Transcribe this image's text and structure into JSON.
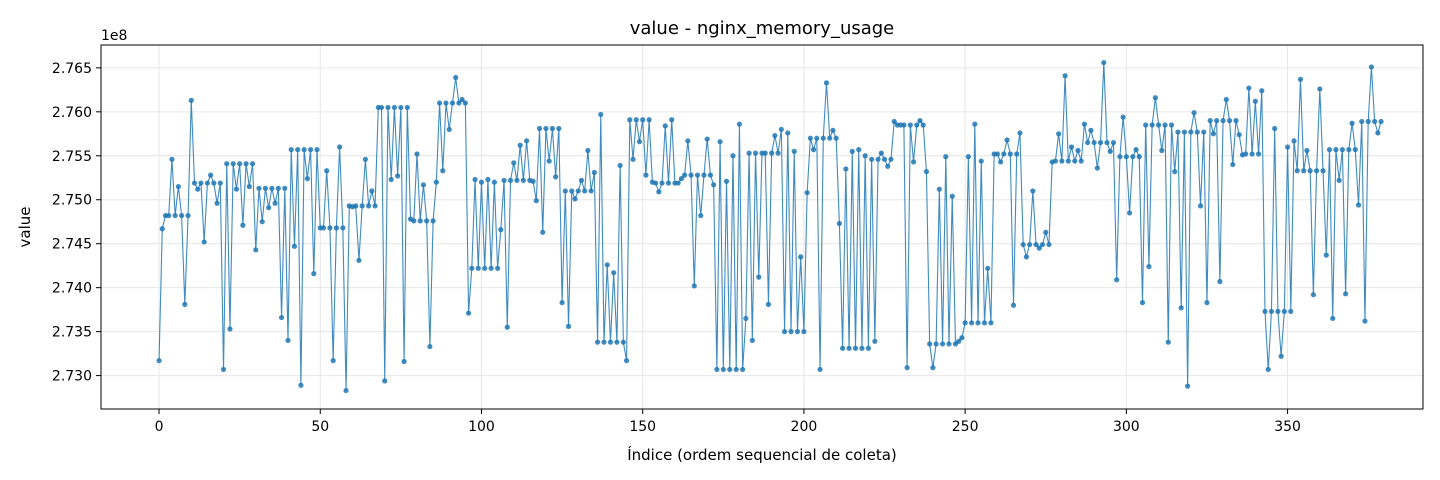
{
  "chart_data": {
    "type": "line",
    "title": "value - nginx_memory_usage",
    "xlabel": "Índice (ordem sequencial de coleta)",
    "ylabel": "value",
    "y_offset_label": "1e8",
    "xlim": [
      -18,
      392
    ],
    "ylim": [
      2.7262,
      2.7676
    ],
    "xticks": [
      0,
      50,
      100,
      150,
      200,
      250,
      300,
      350
    ],
    "yticks": [
      2.73,
      2.735,
      2.74,
      2.745,
      2.75,
      2.755,
      2.76,
      2.765
    ],
    "grid": true,
    "marker": "circle",
    "color": "#1f77b4",
    "series": [
      {
        "x_start": 0,
        "x_step": 1,
        "values": [
          2.7317,
          2.7467,
          2.7482,
          2.7482,
          2.7546,
          2.7482,
          2.7515,
          2.7482,
          2.7381,
          2.7482,
          2.7613,
          2.7519,
          2.7512,
          2.7519,
          2.7452,
          2.7519,
          2.7528,
          2.7519,
          2.7496,
          2.7519,
          2.7307,
          2.7541,
          2.7353,
          2.7541,
          2.7512,
          2.7541,
          2.7471,
          2.7541,
          2.7515,
          2.7541,
          2.7443,
          2.7513,
          2.7475,
          2.7513,
          2.7491,
          2.7513,
          2.7496,
          2.7513,
          2.7366,
          2.7513,
          2.734,
          2.7557,
          2.7447,
          2.7557,
          2.7289,
          2.7557,
          2.7524,
          2.7557,
          2.7416,
          2.7557,
          2.7468,
          2.7468,
          2.7533,
          2.7468,
          2.7317,
          2.7468,
          2.756,
          2.7468,
          2.7283,
          2.7493,
          2.7492,
          2.7493,
          2.7431,
          2.7493,
          2.7546,
          2.7493,
          2.751,
          2.7493,
          2.7605,
          2.7605,
          2.7294,
          2.7605,
          2.7523,
          2.7605,
          2.7527,
          2.7605,
          2.7316,
          2.7605,
          2.7478,
          2.7476,
          2.7552,
          2.7476,
          2.7517,
          2.7476,
          2.7333,
          2.7476,
          2.752,
          2.761,
          2.7533,
          2.761,
          2.758,
          2.761,
          2.7639,
          2.761,
          2.7614,
          2.761,
          2.7371,
          2.7422,
          2.7523,
          2.7422,
          2.752,
          2.7422,
          2.7523,
          2.7422,
          2.752,
          2.7422,
          2.7466,
          2.7522,
          2.7355,
          2.7522,
          2.7542,
          2.7522,
          2.7562,
          2.7522,
          2.7567,
          2.7522,
          2.7521,
          2.7499,
          2.7581,
          2.7463,
          2.7581,
          2.7544,
          2.7581,
          2.7526,
          2.7581,
          2.7383,
          2.751,
          2.7356,
          2.751,
          2.7501,
          2.751,
          2.7522,
          2.751,
          2.7556,
          2.751,
          2.7531,
          2.7338,
          2.7597,
          2.7338,
          2.7426,
          2.7338,
          2.7417,
          2.7338,
          2.7539,
          2.7338,
          2.7317,
          2.7591,
          2.7546,
          2.7591,
          2.7566,
          2.7591,
          2.7528,
          2.7591,
          2.752,
          2.7519,
          2.7509,
          2.7519,
          2.7584,
          2.7519,
          2.7591,
          2.7519,
          2.7519,
          2.7524,
          2.7528,
          2.7567,
          2.7528,
          2.7402,
          2.7528,
          2.7482,
          2.7528,
          2.7569,
          2.7528,
          2.7517,
          2.7307,
          2.7566,
          2.7307,
          2.7521,
          2.7307,
          2.755,
          2.7307,
          2.7586,
          2.7307,
          2.7365,
          2.7553,
          2.734,
          2.7553,
          2.7412,
          2.7553,
          2.7553,
          2.7381,
          2.7553,
          2.7573,
          2.7553,
          2.758,
          2.735,
          2.7576,
          2.735,
          2.7555,
          2.735,
          2.7435,
          2.735,
          2.7508,
          2.757,
          2.7557,
          2.757,
          2.7307,
          2.757,
          2.7633,
          2.757,
          2.7579,
          2.757,
          2.7473,
          2.7331,
          2.7535,
          2.7331,
          2.7555,
          2.7331,
          2.7557,
          2.7331,
          2.755,
          2.7331,
          2.7546,
          2.7339,
          2.7546,
          2.7553,
          2.7546,
          2.7538,
          2.7546,
          2.7589,
          2.7585,
          2.7585,
          2.7585,
          2.7309,
          2.7585,
          2.7543,
          2.7585,
          2.759,
          2.7585,
          2.7532,
          2.7336,
          2.7309,
          2.7336,
          2.7512,
          2.7336,
          2.7549,
          2.7336,
          2.7504,
          2.7336,
          2.7339,
          2.7343,
          2.736,
          2.7549,
          2.736,
          2.7586,
          2.736,
          2.7544,
          2.736,
          2.7422,
          2.736,
          2.7552,
          2.7552,
          2.7543,
          2.7552,
          2.7568,
          2.7552,
          2.738,
          2.7552,
          2.7576,
          2.7449,
          2.7435,
          2.7449,
          2.751,
          2.7449,
          2.7445,
          2.7449,
          2.7463,
          2.7449,
          2.7543,
          2.7544,
          2.7575,
          2.7544,
          2.7641,
          2.7544,
          2.756,
          2.7544,
          2.7556,
          2.7544,
          2.7586,
          2.7565,
          2.7579,
          2.7565,
          2.7536,
          2.7565,
          2.7656,
          2.7565,
          2.7555,
          2.7565,
          2.7409,
          2.7549,
          2.7594,
          2.7549,
          2.7485,
          2.7549,
          2.7557,
          2.7549,
          2.7383,
          2.7585,
          2.7424,
          2.7585,
          2.7616,
          2.7585,
          2.7556,
          2.7585,
          2.7338,
          2.7585,
          2.7532,
          2.7577,
          2.7377,
          2.7577,
          2.7288,
          2.7577,
          2.7599,
          2.7577,
          2.7493,
          2.7577,
          2.7383,
          2.759,
          2.7575,
          2.759,
          2.7407,
          2.759,
          2.7614,
          2.759,
          2.754,
          2.759,
          2.7574,
          2.7551,
          2.7552,
          2.7627,
          2.7552,
          2.7612,
          2.7552,
          2.7624,
          2.7373,
          2.7307,
          2.7373,
          2.7581,
          2.7373,
          2.7322,
          2.7373,
          2.756,
          2.7373,
          2.7567,
          2.7533,
          2.7637,
          2.7533,
          2.7556,
          2.7533,
          2.7392,
          2.7533,
          2.7626,
          2.7533,
          2.7437,
          2.7557,
          2.7365,
          2.7557,
          2.7522,
          2.7557,
          2.7393,
          2.7557,
          2.7587,
          2.7557,
          2.7494,
          2.7589,
          2.7362,
          2.7589,
          2.7651,
          2.7589,
          2.7576,
          2.7589
        ]
      }
    ]
  }
}
